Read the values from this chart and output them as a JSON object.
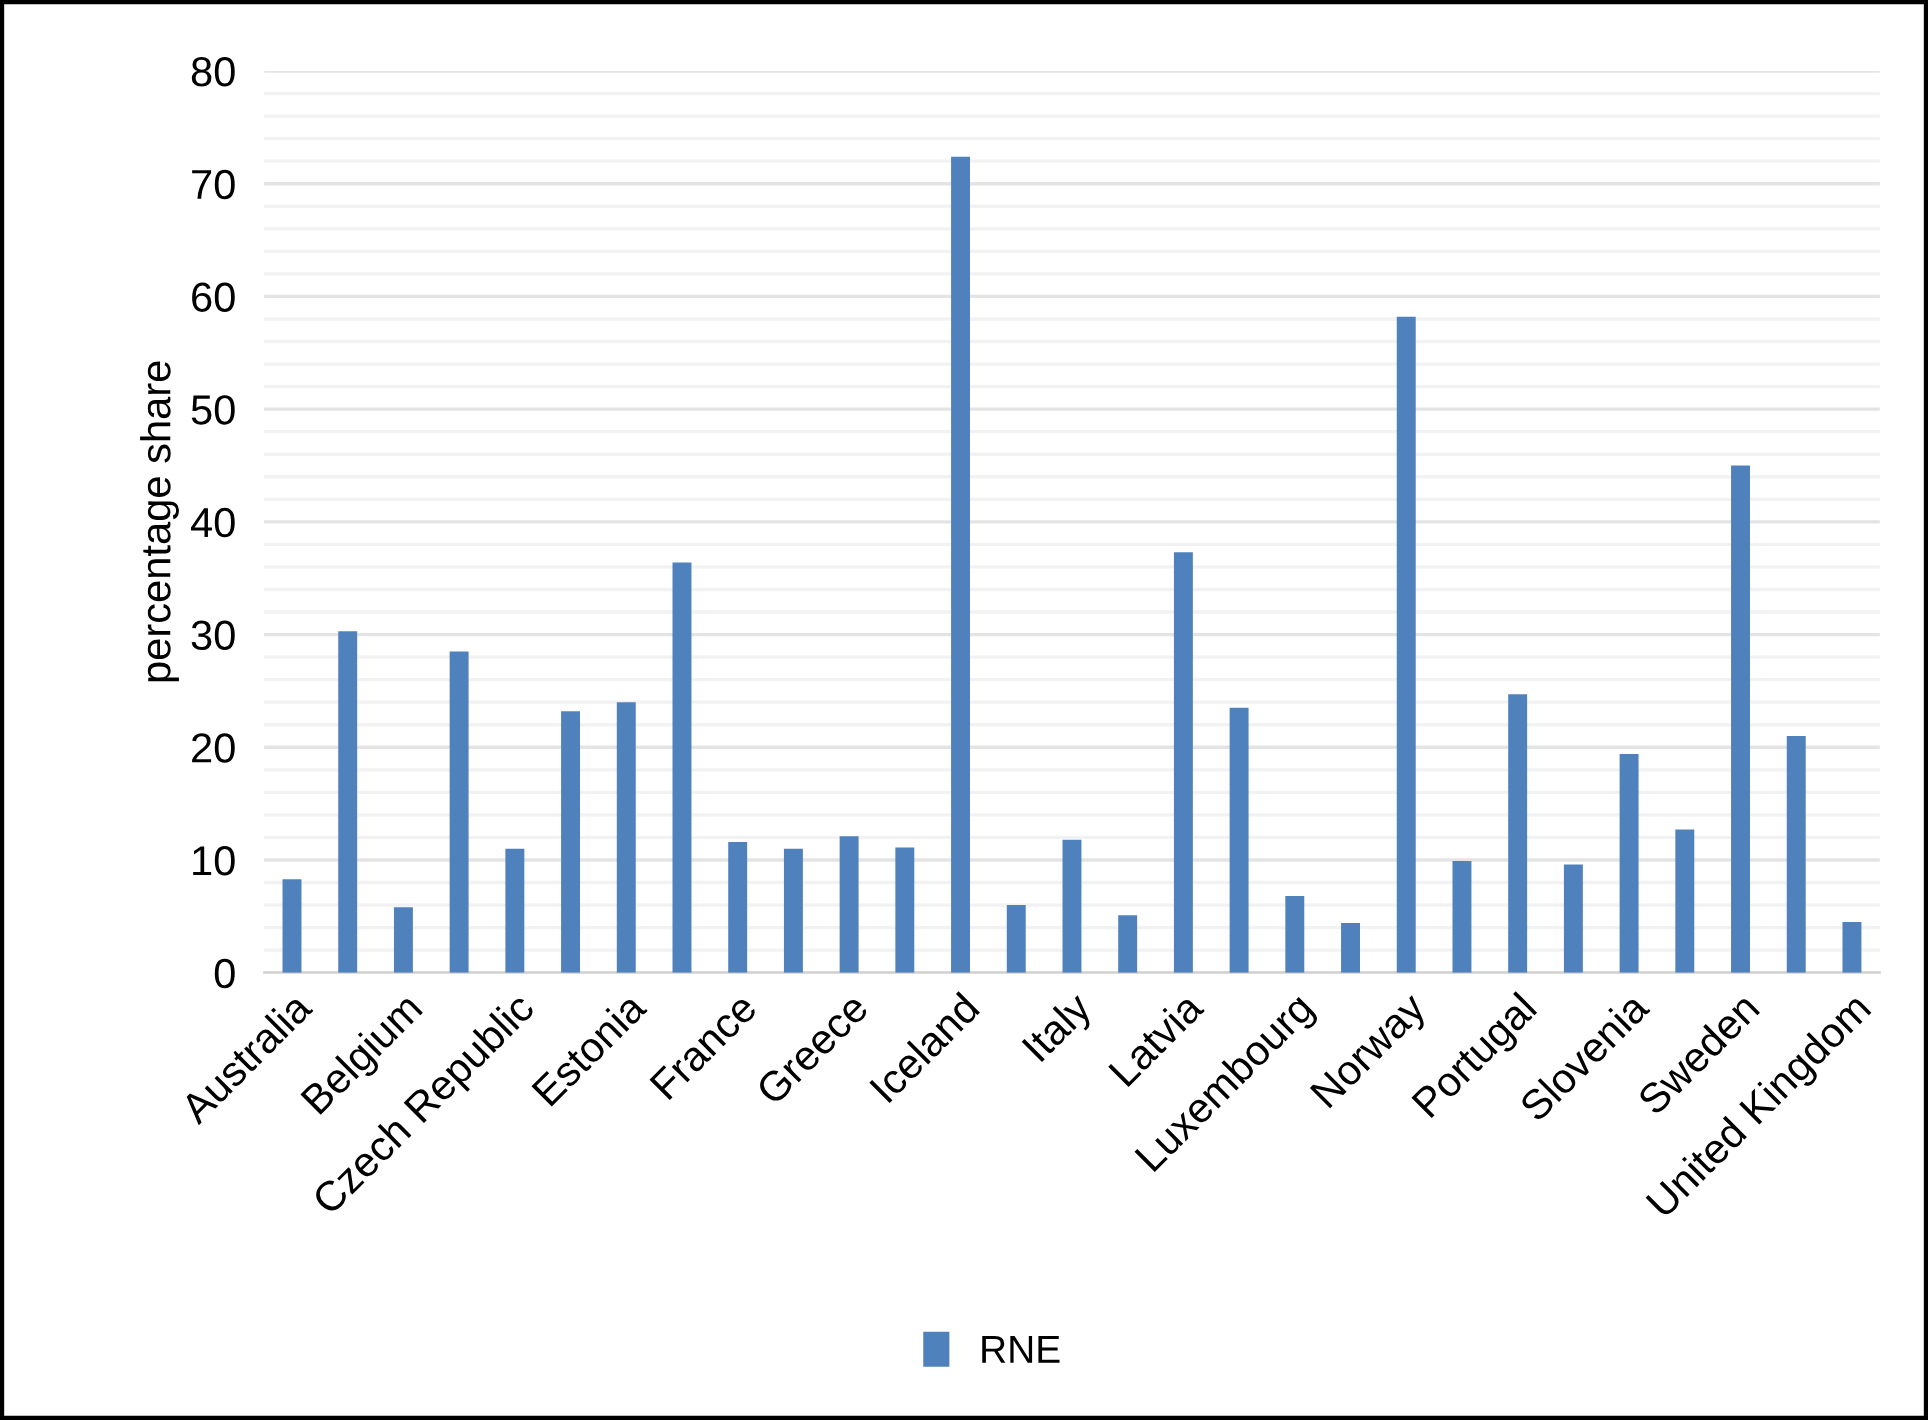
{
  "chart_data": {
    "type": "bar",
    "ylabel": "percentage share",
    "categories": [
      "Australia",
      null,
      "Belgium",
      null,
      "Czech Republic",
      null,
      "Estonia",
      null,
      "France",
      null,
      "Greece",
      null,
      "Iceland",
      null,
      "Italy",
      null,
      "Latvia",
      null,
      "Luxembourg",
      null,
      "Norway",
      null,
      "Portugal",
      null,
      "Slovenia",
      null,
      "Sweden",
      null,
      "United Kingdom"
    ],
    "series": [
      {
        "name": "RNE",
        "color": "#4f81bd",
        "values": [
          8.3,
          30.3,
          5.8,
          28.5,
          11.0,
          23.2,
          24.0,
          36.4,
          11.6,
          11.0,
          12.1,
          11.1,
          72.4,
          6.0,
          11.8,
          5.1,
          37.3,
          23.5,
          6.8,
          4.4,
          58.2,
          9.9,
          24.7,
          9.6,
          19.4,
          12.7,
          45.0,
          21.0,
          4.5
        ]
      }
    ],
    "ylim": [
      0,
      80
    ],
    "yticks": [
      0,
      {
        "value": 2,
        "label": null
      },
      {
        "value": 4,
        "label": null
      },
      {
        "value": 6,
        "label": null
      },
      {
        "value": 8,
        "label": null
      },
      10,
      {
        "value": 12,
        "label": null
      },
      {
        "value": 14,
        "label": null
      },
      {
        "value": 16,
        "label": null
      },
      {
        "value": 18,
        "label": null
      },
      20,
      {
        "value": 22,
        "label": null
      },
      {
        "value": 24,
        "label": null
      },
      {
        "value": 26,
        "label": null
      },
      {
        "value": 28,
        "label": null
      },
      30,
      {
        "value": 32,
        "label": null
      },
      {
        "value": 34,
        "label": null
      },
      {
        "value": 36,
        "label": null
      },
      {
        "value": 38,
        "label": null
      },
      40,
      {
        "value": 42,
        "label": null
      },
      {
        "value": 44,
        "label": null
      },
      {
        "value": 46,
        "label": null
      },
      {
        "value": 48,
        "label": null
      },
      50,
      {
        "value": 52,
        "label": null
      },
      {
        "value": 54,
        "label": null
      },
      {
        "value": 56,
        "label": null
      },
      {
        "value": 58,
        "label": null
      },
      60,
      {
        "value": 62,
        "label": null
      },
      {
        "value": 64,
        "label": null
      },
      {
        "value": 66,
        "label": null
      },
      {
        "value": 68,
        "label": null
      },
      70,
      {
        "value": 72,
        "label": null
      },
      {
        "value": 74,
        "label": null
      },
      {
        "value": 76,
        "label": null
      },
      {
        "value": 78,
        "label": null
      },
      80
    ],
    "grid": "y",
    "legend": "bottom"
  }
}
